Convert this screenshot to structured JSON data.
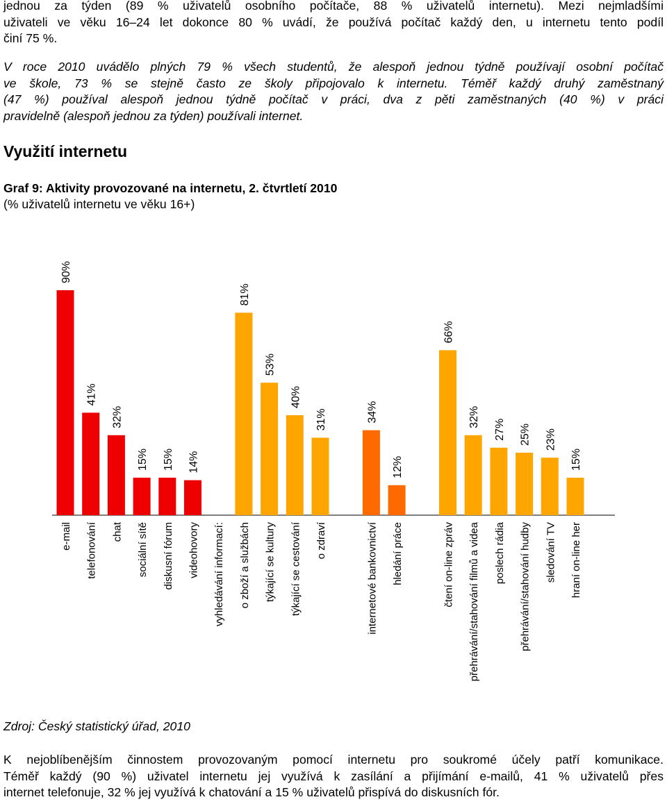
{
  "intro_lines": [
    "jednou za týden (89 % uživatelů osobního počítače, 88 % uživatelů internetu). Mezi nejmladšími",
    "uživateli ve věku 16–24 let dokonce 80 % uvádí, že používá počítač každý den, u internetu tento podíl",
    "činí 75 %."
  ],
  "school_lines": [
    "V roce 2010 uvádělo plných 79 % všech studentů, že alespoň jednou týdně používají osobní počítač",
    "ve škole, 73 % se stejně často ze školy připojovalo k internetu. Téměř každý druhý zaměstnaný",
    "(47 %) používal alespoň jednou týdně počítač v práci, dva z pěti zaměstnaných (40 %) v práci",
    "pravidelně (alespoň jednou za týden) používali internet."
  ],
  "section_heading": "Využití internetu",
  "chart_title": "Graf 9: Aktivity provozované na internetu, 2. čtvrtletí 2010",
  "chart_subtitle": "(% uživatelů internetu ve věku 16+)",
  "chart_data": {
    "type": "bar",
    "ylim": [
      0,
      100
    ],
    "grid": false,
    "legend": "none",
    "colors": [
      "#ee0000",
      "#ee0000",
      "#ee0000",
      "#ee0000",
      "#ee0000",
      "#ee0000",
      "",
      "#ffa500",
      "#ffa500",
      "#ffa500",
      "#ffa500",
      "",
      "#ff6a00",
      "#ff6a00",
      "",
      "#ffa500",
      "#ffa500",
      "#ffa500",
      "#ffa500",
      "#ffa500",
      "#ffa500"
    ],
    "categories": [
      "e-mail",
      "telefonování",
      "chat",
      "sociální sítě",
      "diskusní fórum",
      "videohovory",
      "vyhledávání informací:",
      "o zboží a službách",
      "týkající se kultury",
      "týkající se cestování",
      "o zdraví",
      "",
      "internetové bankovnictví",
      "hledání práce",
      "",
      "čtení on-line zpráv",
      "přehrávání/stahování filmů a videa",
      "poslech rádia",
      "přehrávání/stahování hudby",
      "sledování TV",
      "hraní on-line her"
    ],
    "values": [
      90,
      41,
      32,
      15,
      15,
      14,
      null,
      81,
      53,
      40,
      31,
      null,
      34,
      12,
      null,
      66,
      32,
      27,
      25,
      23,
      15
    ],
    "value_labels": [
      "90%",
      "41%",
      "32%",
      "15%",
      "15%",
      "14%",
      "",
      "81%",
      "53%",
      "40%",
      "31%",
      "",
      "34%",
      "12%",
      "",
      "66%",
      "32%",
      "27%",
      "25%",
      "23%",
      "15%"
    ]
  },
  "source_note": "Zdroj: Český statistický úřad, 2010",
  "closing_lines": [
    "K nejoblíbenějším činnostem provozovaným pomocí internetu pro soukromé účely patří komunikace.",
    "Téměř každý (90 %) uživatel internetu jej využívá k zasílání a přijímání e-mailů, 41 % uživatelů přes",
    "internet telefonuje, 32 % jej využívá k chatování a 15 % uživatelů přispívá do diskusních fór."
  ]
}
